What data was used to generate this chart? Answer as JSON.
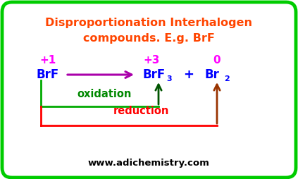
{
  "title_line1": "Disproportionation Interhalogen",
  "title_line2": "compounds. E.g. BrF",
  "title_color": "#FF4500",
  "bg_color": "#FFFFFF",
  "border_color": "#00CC00",
  "website": "www.adichemistry.com",
  "ox_state_color": "#FF00FF",
  "compound_color": "#0000FF",
  "plus_color": "#0000FF",
  "arrow_main_color": "#AA00AA",
  "oxidation_color": "#008800",
  "reduction_color": "#FF0000",
  "ox_box_color": "#00AA00",
  "red_box_color": "#FF0000",
  "ox_arrow_color": "#005500",
  "red_arrow_color": "#993300"
}
